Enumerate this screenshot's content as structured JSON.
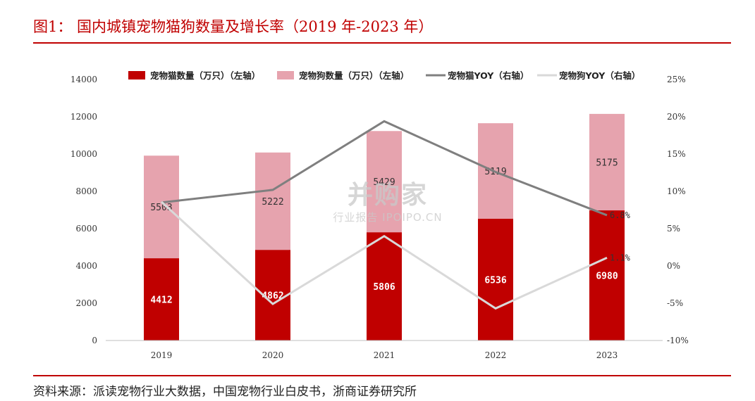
{
  "figure": {
    "title": "图1： 国内城镇宠物猫狗数量及增长率（2019 年-2023 年）",
    "source": "资料来源：派读宠物行业大数据，中国宠物行业白皮书，浙商证券研究所"
  },
  "watermark": {
    "brand": "并购家",
    "sub": "行业报告 IPOIPO.CN"
  },
  "chart_data": {
    "type": "bar",
    "stacked": true,
    "categories": [
      "2019",
      "2020",
      "2021",
      "2022",
      "2023"
    ],
    "series": [
      {
        "name": "宠物猫数量（万只）（左轴）",
        "axis": "left",
        "kind": "bar",
        "color": "#c00000",
        "values": [
          4412,
          4862,
          5806,
          6536,
          6980
        ],
        "labels": [
          "4412",
          "4862",
          "5806",
          "6536",
          "6980"
        ]
      },
      {
        "name": "宠物狗数量（万只）（左轴）",
        "axis": "left",
        "kind": "bar",
        "color": "#e6a3ae",
        "values": [
          5503,
          5222,
          5429,
          5119,
          5175
        ],
        "labels": [
          "5503",
          "5222",
          "5429",
          "5119",
          "5175"
        ]
      },
      {
        "name": "宠物猫YOY（右轴）",
        "axis": "right",
        "kind": "line",
        "color": "#7f7f7f",
        "values": [
          8.5,
          10.2,
          19.4,
          12.6,
          6.8
        ],
        "end_label": "6.8%"
      },
      {
        "name": "宠物狗YOY（右轴）",
        "axis": "right",
        "kind": "line",
        "color": "#d9d9d9",
        "values": [
          8.6,
          -5.1,
          4.0,
          -5.7,
          1.1
        ],
        "end_label": "1.1%"
      }
    ],
    "left_axis": {
      "min": 0,
      "max": 14000,
      "ticks": [
        "0",
        "2000",
        "4000",
        "6000",
        "8000",
        "10000",
        "12000",
        "14000"
      ]
    },
    "right_axis": {
      "min": -10,
      "max": 25,
      "ticks": [
        "-10%",
        "-5%",
        "0%",
        "5%",
        "10%",
        "15%",
        "20%",
        "25%"
      ]
    },
    "legend_position": "top",
    "grid": false
  }
}
